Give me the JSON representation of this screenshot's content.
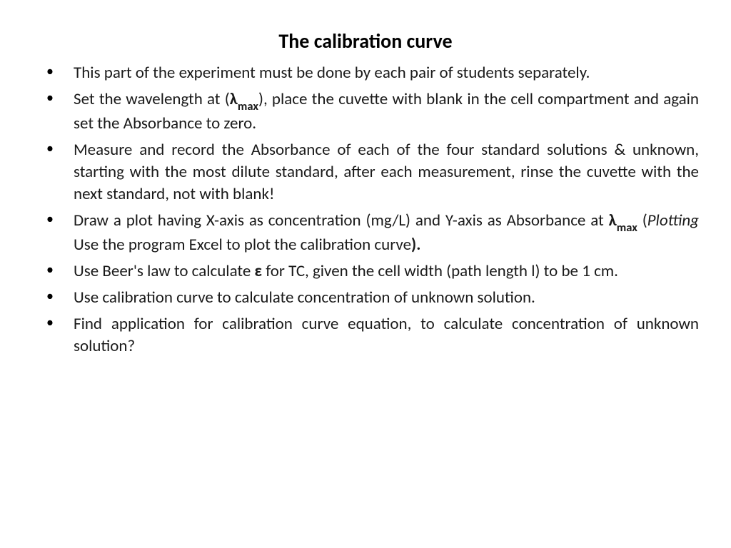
{
  "title": "The calibration curve",
  "bullets": {
    "item1": " This part of the experiment must be done by each pair of students separately.",
    "item2_part1": "Set the wavelength at (",
    "item2_lambda": "λ",
    "item2_sub": "max",
    "item2_part2": "), place the cuvette with blank in the cell compartment and again set the Absorbance to zero.",
    "item3": "Measure and record the Absorbance of each of the four standard solutions & unknown, starting with the most dilute standard, after each measurement, rinse the cuvette with the next standard, not with blank!",
    "item4_part1": "Draw a plot having X-axis as concentration (mg/L) and Y-axis as Absorbance at ",
    "item4_lambda": "λ",
    "item4_sub": "max",
    "item4_part2": " (",
    "item4_italic": "Plotting",
    "item4_part3": " Use the program Excel to plot the calibration curve",
    "item4_part4": ").",
    "item5_part1": "Use Beer's law to calculate ",
    "item5_epsilon": "ε",
    "item5_part2": " for TC, given the cell width (path length l) to be 1 cm.",
    "item6": "Use calibration curve to calculate concentration of unknown solution.",
    "item7": "Find application for calibration curve equation, to calculate concentration of unknown solution?"
  },
  "styling": {
    "background_color": "#ffffff",
    "text_color": "#000000",
    "title_fontsize": 28,
    "body_fontsize": 23,
    "font_family": "Calibri"
  }
}
